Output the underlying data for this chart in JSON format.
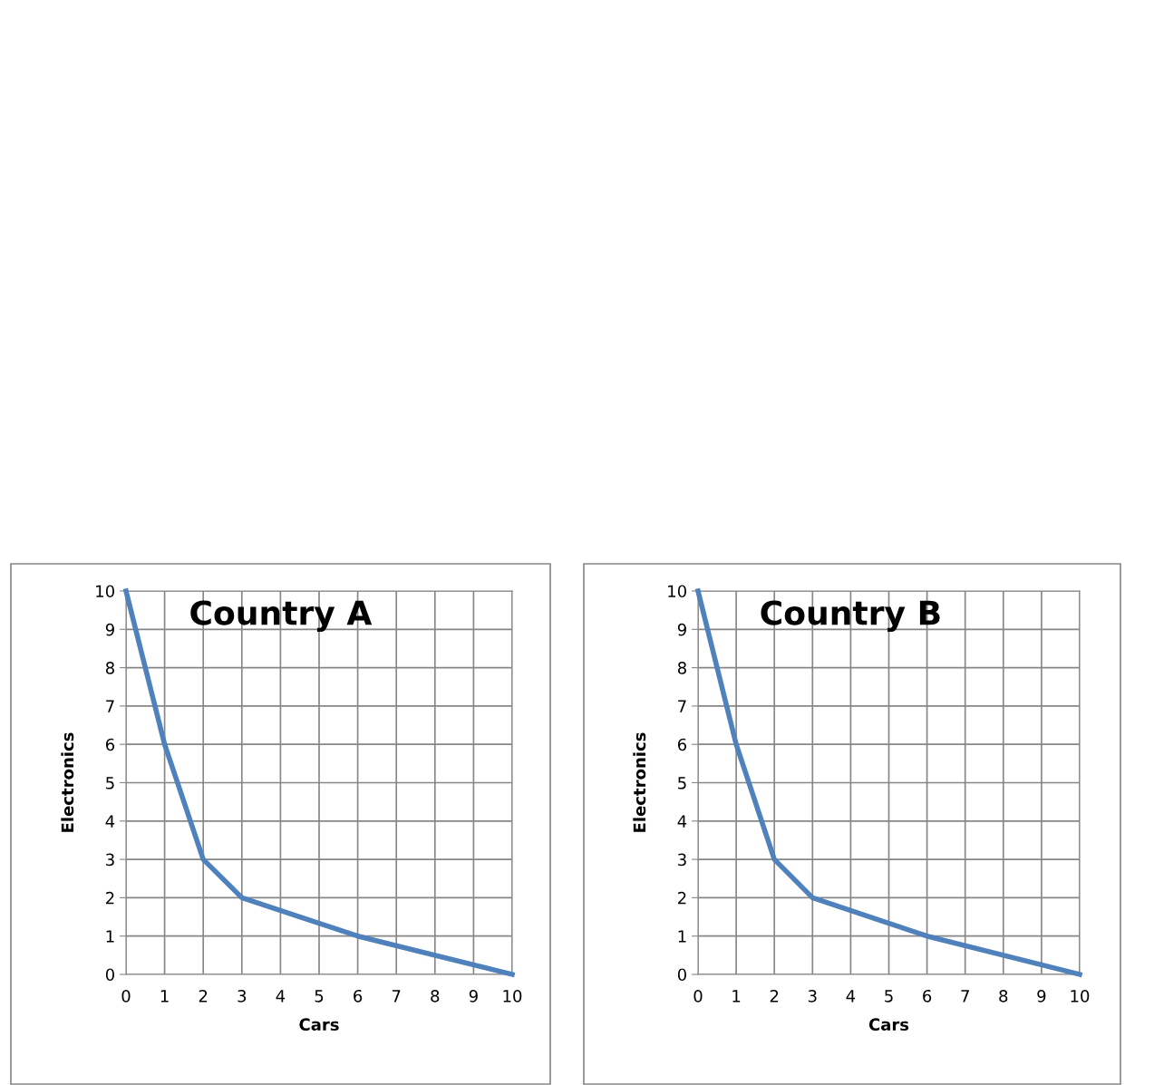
{
  "chart_data": [
    {
      "type": "line",
      "title": "Country A",
      "xlabel": "Cars",
      "ylabel": "Electronics",
      "x": [
        0,
        1,
        2,
        3,
        6,
        10
      ],
      "series": [
        {
          "color": "#4f81bd",
          "values": [
            10,
            6,
            3,
            2,
            1,
            0
          ]
        }
      ],
      "xlim": [
        0,
        10
      ],
      "xticks": [
        0,
        1,
        2,
        3,
        4,
        5,
        6,
        7,
        8,
        9,
        10
      ],
      "ylim": [
        0,
        10
      ],
      "yticks": [
        0,
        1,
        2,
        3,
        4,
        5,
        6,
        7,
        8,
        9,
        10
      ],
      "grid": true,
      "marker": "none",
      "line_style": "solid"
    },
    {
      "type": "line",
      "title": "Country B",
      "xlabel": "Cars",
      "ylabel": "Electronics",
      "x": [
        0,
        1,
        2,
        3,
        6,
        10
      ],
      "series": [
        {
          "color": "#4f81bd",
          "values": [
            10,
            6,
            3,
            2,
            1,
            0
          ]
        }
      ],
      "xlim": [
        0,
        10
      ],
      "xticks": [
        0,
        1,
        2,
        3,
        4,
        5,
        6,
        7,
        8,
        9,
        10
      ],
      "ylim": [
        0,
        10
      ],
      "yticks": [
        0,
        1,
        2,
        3,
        4,
        5,
        6,
        7,
        8,
        9,
        10
      ],
      "grid": true,
      "marker": "none",
      "line_style": "solid"
    }
  ]
}
